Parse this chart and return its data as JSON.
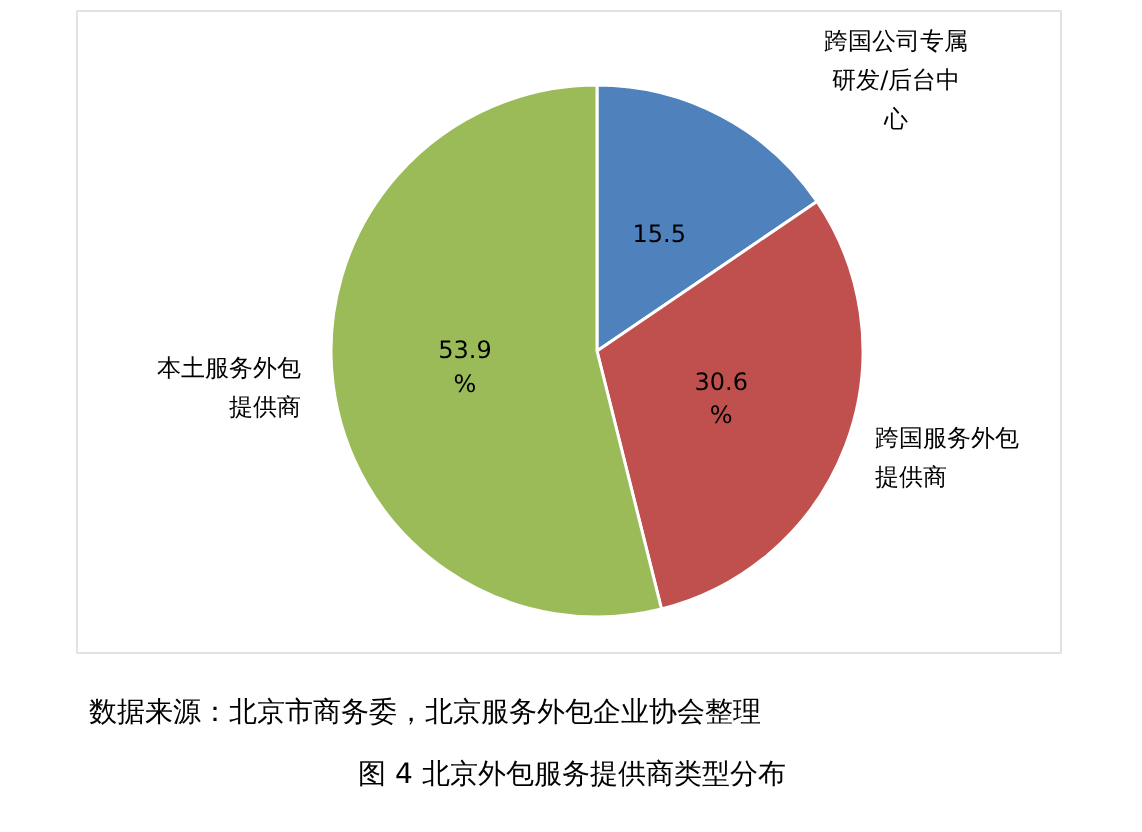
{
  "chart_data": {
    "type": "pie",
    "title": "图 4 北京外包服务提供商类型分布",
    "categories": [
      "跨国公司专属研发/后台中心",
      "跨国服务外包提供商",
      "本土服务外包提供商"
    ],
    "values": [
      15.5,
      30.6,
      53.9
    ],
    "colors": [
      "#4f81bd",
      "#c0504d",
      "#9bbb59"
    ],
    "value_labels": [
      "15.5",
      "30.6\n%",
      "53.9\n%"
    ],
    "annotations": [
      "数据来源：北京市商务委，北京服务外包企业协会整理"
    ]
  }
}
